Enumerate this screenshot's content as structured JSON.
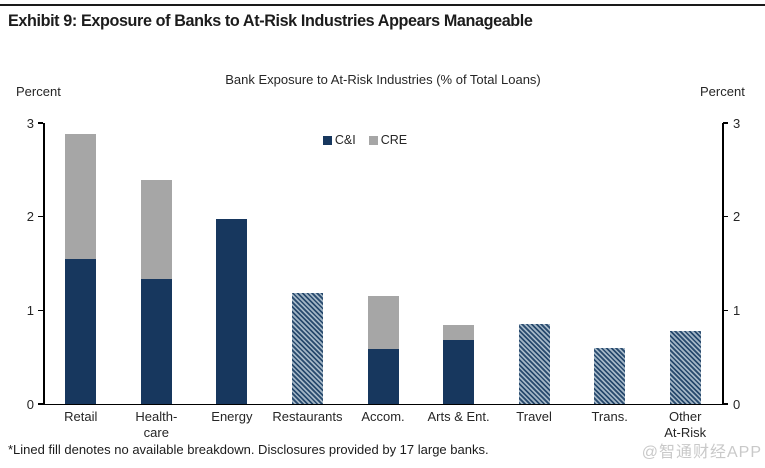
{
  "page": {
    "exhibit_title": "Exhibit 9: Exposure of Banks to At-Risk Industries Appears Manageable",
    "footnote": "*Lined fill denotes no available breakdown. Disclosures provided by 17 large banks.",
    "watermark": "@智通财经APP"
  },
  "chart_data": {
    "type": "bar",
    "stacked": true,
    "title": "Bank Exposure to At-Risk Industries (% of Total Loans)",
    "unit_label_left": "Percent",
    "unit_label_right": "Percent",
    "ylim": [
      0,
      3
    ],
    "yticks": [
      0,
      1,
      2,
      3
    ],
    "grid": false,
    "legend_position": "top-center",
    "colors": {
      "ci": "#17375e",
      "cre": "#a6a6a6",
      "hatch_dark": "#27496d",
      "hatch_light": "#a3b6c6",
      "axis": "#000000",
      "watermark": "#c9c9c9"
    },
    "categories": [
      "Retail",
      "Health-care",
      "Energy",
      "Restaurants",
      "Accom.",
      "Arts & Ent.",
      "Travel",
      "Trans.",
      "Other At-Risk"
    ],
    "series": [
      {
        "name": "C&I",
        "color": "#17375e",
        "values": [
          1.55,
          1.33,
          1.97,
          null,
          0.59,
          0.68,
          null,
          null,
          null
        ]
      },
      {
        "name": "CRE",
        "color": "#a6a6a6",
        "values": [
          1.33,
          1.06,
          0,
          null,
          0.56,
          0.16,
          null,
          null,
          null
        ]
      }
    ],
    "lined_totals": [
      null,
      null,
      null,
      1.18,
      null,
      null,
      0.85,
      0.6,
      0.78
    ],
    "bars": [
      {
        "label": "Retail",
        "label_lines": [
          "Retail"
        ],
        "ci": 1.55,
        "cre": 1.33,
        "lined": false,
        "total": 2.88
      },
      {
        "label": "Health-care",
        "label_lines": [
          "Health-",
          "care"
        ],
        "ci": 1.33,
        "cre": 1.06,
        "lined": false,
        "total": 2.39
      },
      {
        "label": "Energy",
        "label_lines": [
          "Energy"
        ],
        "ci": 1.97,
        "cre": 0,
        "lined": false,
        "total": 1.97
      },
      {
        "label": "Restaurants",
        "label_lines": [
          "Restaurants"
        ],
        "lined": true,
        "total": 1.18
      },
      {
        "label": "Accom.",
        "label_lines": [
          "Accom."
        ],
        "ci": 0.59,
        "cre": 0.56,
        "lined": false,
        "total": 1.15
      },
      {
        "label": "Arts & Ent.",
        "label_lines": [
          "Arts & Ent."
        ],
        "ci": 0.68,
        "cre": 0.16,
        "lined": false,
        "total": 0.84
      },
      {
        "label": "Travel",
        "label_lines": [
          "Travel"
        ],
        "lined": true,
        "total": 0.85
      },
      {
        "label": "Trans.",
        "label_lines": [
          "Trans."
        ],
        "lined": true,
        "total": 0.6
      },
      {
        "label": "Other At-Risk",
        "label_lines": [
          "Other",
          "At-Risk"
        ],
        "lined": true,
        "total": 0.78
      }
    ]
  }
}
